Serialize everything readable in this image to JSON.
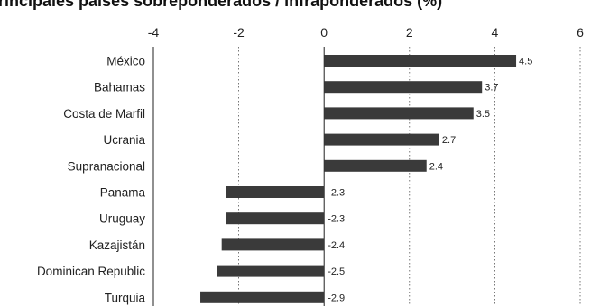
{
  "chart_data": {
    "type": "bar",
    "orientation": "horizontal",
    "title": "Principales países sobreponderados / infraponderados (%)",
    "xlabel": "",
    "ylabel": "",
    "xlim": [
      -4,
      6
    ],
    "x_ticks": [
      -4,
      -2,
      0,
      2,
      4,
      6
    ],
    "grid": "vertical dotted",
    "legend": "none",
    "bar_color": "#3a3a3a",
    "categories": [
      "México",
      "Bahamas",
      "Costa de Marfil",
      "Ucrania",
      "Supranacional",
      "Panama",
      "Uruguay",
      "Kazajistán",
      "Dominican Republic",
      "Turquia"
    ],
    "values": [
      4.5,
      3.7,
      3.5,
      2.7,
      2.4,
      -2.3,
      -2.3,
      -2.4,
      -2.5,
      -2.9
    ],
    "value_labels": [
      "4.5",
      "3.7",
      "3.5",
      "2.7",
      "2.4",
      "-2.3",
      "-2.3",
      "-2.4",
      "-2.5",
      "-2.9"
    ]
  }
}
